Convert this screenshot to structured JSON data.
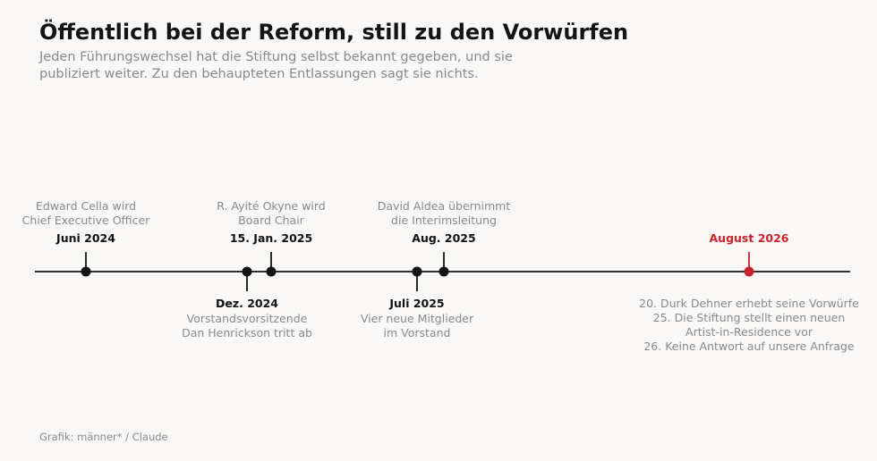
{
  "title": "Öffentlich bei der Reform, still zu den Vorwürfen",
  "subtitle": "Jeden Führungswechsel hat die Stiftung selbst bekannt gegeben, und sie publiziert weiter. Zu den behaupteten Entlassungen sagt sie nichts.",
  "source": "Grafik: männer* / Claude",
  "colors": {
    "ink": "#141414",
    "muted": "#8a8a8a",
    "highlight": "#c8222a",
    "background": "#f9f8f6"
  },
  "timeline": {
    "events": [
      {
        "date_label": "Juni 2024",
        "date": "2024-06",
        "side": "above",
        "description": [
          "Edward Cella wird",
          "Chief Executive Officer"
        ],
        "highlight": false
      },
      {
        "date_label": "Dez. 2024",
        "date": "2024-12",
        "side": "below",
        "description": [
          "Vorstandsvorsitzende",
          "Dan Henrickson tritt ab"
        ],
        "highlight": false
      },
      {
        "date_label": "15. Jan. 2025",
        "date": "2025-01-15",
        "side": "above",
        "description": [
          "R. Ayité Okyne wird",
          "Board Chair"
        ],
        "highlight": false
      },
      {
        "date_label": "Juli 2025",
        "date": "2025-07",
        "side": "below",
        "description": [
          "Vier neue Mitglieder",
          "im Vorstand"
        ],
        "highlight": false
      },
      {
        "date_label": "Aug. 2025",
        "date": "2025-08",
        "side": "above",
        "description": [
          "David Aldea übernimmt",
          "die Interimsleitung"
        ],
        "highlight": false
      },
      {
        "date_label": "August 2026",
        "date": "2026-08",
        "side": "above",
        "description": [],
        "highlight": true,
        "details_below": [
          "20. Durk Dehner erhebt seine Vorwürfe",
          "25. Die Stiftung stellt einen neuen",
          "Artist-in-Residence vor",
          "26. Keine Antwort auf unsere Anfrage"
        ]
      }
    ]
  }
}
